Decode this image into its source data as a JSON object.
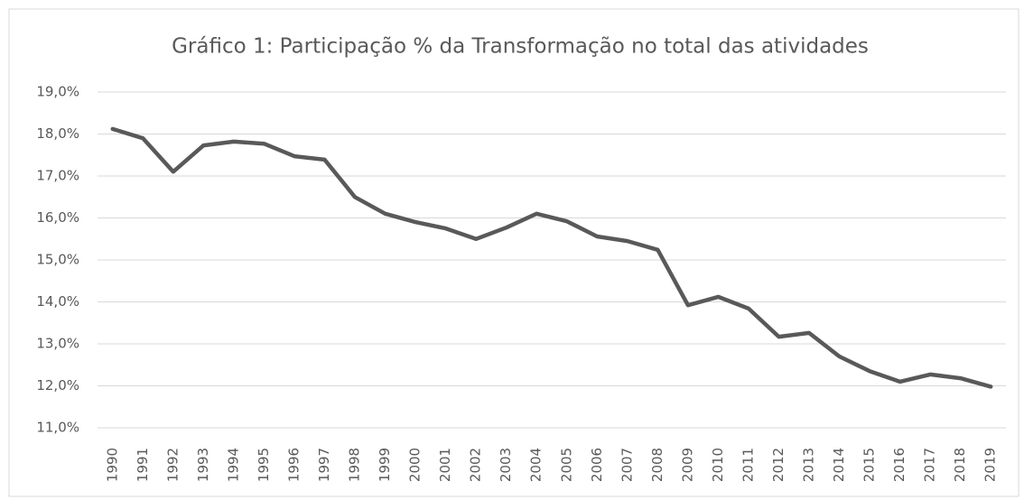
{
  "chart_data": {
    "type": "line",
    "title": "Gráfico 1: Participação % da Transformação no total das atividades",
    "categories": [
      "1990",
      "1991",
      "1992",
      "1993",
      "1994",
      "1995",
      "1996",
      "1997",
      "1998",
      "1999",
      "2000",
      "2001",
      "2002",
      "2003",
      "2004",
      "2005",
      "2006",
      "2007",
      "2008",
      "2009",
      "2010",
      "2011",
      "2012",
      "2013",
      "2014",
      "2015",
      "2016",
      "2017",
      "2018",
      "2019"
    ],
    "values": [
      18.12,
      17.9,
      17.1,
      17.73,
      17.82,
      17.77,
      17.47,
      17.39,
      16.5,
      16.1,
      15.9,
      15.75,
      15.5,
      15.77,
      16.1,
      15.92,
      15.56,
      15.45,
      15.24,
      13.92,
      14.12,
      13.84,
      13.17,
      13.26,
      12.7,
      12.35,
      12.1,
      12.27,
      12.18,
      11.98
    ],
    "color": "#595959",
    "ylim": [
      11,
      19
    ],
    "yticks": [
      {
        "value": 11,
        "label": "11,0%"
      },
      {
        "value": 12,
        "label": "12,0%"
      },
      {
        "value": 13,
        "label": "13,0%"
      },
      {
        "value": 14,
        "label": "14,0%"
      },
      {
        "value": 15,
        "label": "15,0%"
      },
      {
        "value": 16,
        "label": "16,0%"
      },
      {
        "value": 17,
        "label": "17,0%"
      },
      {
        "value": 18,
        "label": "18,0%"
      },
      {
        "value": 19,
        "label": "19,0%"
      }
    ],
    "grid": true
  }
}
